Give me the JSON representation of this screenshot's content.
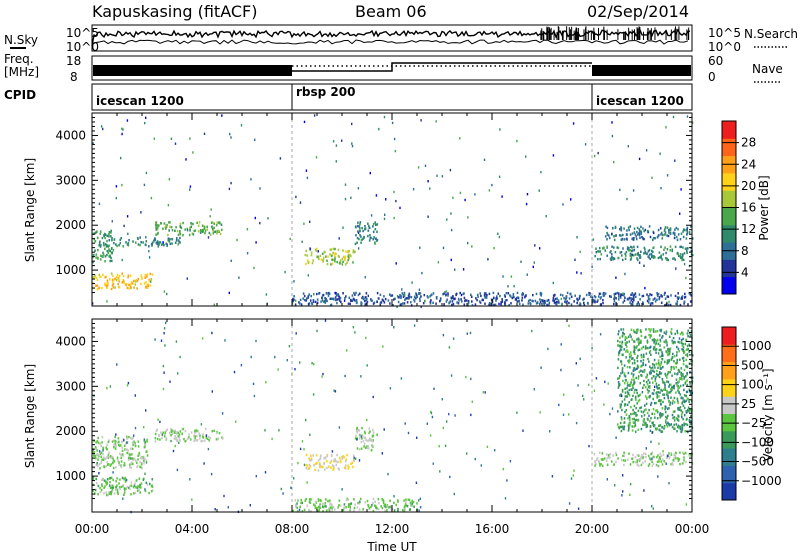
{
  "header": {
    "station": "Kapuskasing (fitACF)",
    "beam": "Beam 06",
    "date": "02/Sep/2014"
  },
  "labels": {
    "nsky": "N.Sky",
    "nsearch": "N.Search",
    "freq_line1": "Freq.",
    "freq_line2": "[MHz]",
    "nave": "Nave",
    "cpid": "CPID"
  },
  "noise_panel": {
    "left_ticks": [
      "10^5",
      "10^0"
    ],
    "right_ticks": [
      "10^5",
      "10^0"
    ]
  },
  "freq_panel": {
    "left_ticks": [
      "18",
      "8"
    ],
    "right_ticks": [
      "60",
      "0"
    ]
  },
  "cpid_segments": [
    {
      "label": "icescan 1200",
      "start_hour": 0,
      "end_hour": 8
    },
    {
      "label": "rbsp 200",
      "start_hour": 8,
      "end_hour": 20
    },
    {
      "label": "icescan 1200",
      "start_hour": 20,
      "end_hour": 24
    }
  ],
  "colorbars": {
    "power": {
      "title": "Power [dB]",
      "ticks": [
        "28",
        "24",
        "20",
        "16",
        "12",
        "8",
        "4"
      ],
      "colors": [
        "#0000ee",
        "#223399",
        "#2e6f98",
        "#2e8a6a",
        "#4aa84a",
        "#a8c83a",
        "#ffd21a",
        "#ffa018",
        "#ff6418",
        "#ee1e1e"
      ]
    },
    "velocity": {
      "title": "Velocity [m s⁻¹]",
      "ticks": [
        "1000",
        "500",
        "100",
        "25",
        "−25",
        "−100",
        "−500",
        "−1000"
      ],
      "colors": [
        "#1a3aa8",
        "#2c62b0",
        "#2e7e8e",
        "#3a9a5a",
        "#5cc640",
        "#c8c8c8",
        "#ffd21a",
        "#ffa018",
        "#ff6e18",
        "#ee1e1e"
      ]
    }
  },
  "chart_data": {
    "type": "heatmap",
    "x_axis": {
      "label": "Time UT",
      "range_hours": [
        0,
        24
      ],
      "ticks": [
        "00:00",
        "04:00",
        "08:00",
        "12:00",
        "16:00",
        "20:00",
        "00:00"
      ]
    },
    "y_axis": {
      "label": "Slant Range [km]",
      "range_km": [
        200,
        4500
      ],
      "ticks": [
        "1000",
        "2000",
        "3000",
        "4000"
      ]
    },
    "panels": [
      {
        "name": "Power",
        "units": "dB",
        "scale": [
          0,
          30
        ],
        "regions": [
          {
            "t0": 0.0,
            "t1": 2.4,
            "r0": 600,
            "r1": 950,
            "value": 20
          },
          {
            "t0": 0.0,
            "t1": 0.8,
            "r0": 1200,
            "r1": 1900,
            "value": 12
          },
          {
            "t0": 0.5,
            "t1": 3.5,
            "r0": 1550,
            "r1": 1750,
            "value": 10
          },
          {
            "t0": 2.5,
            "t1": 5.2,
            "r0": 1800,
            "r1": 2100,
            "value": 14
          },
          {
            "t0": 8.5,
            "t1": 10.5,
            "r0": 1150,
            "r1": 1500,
            "value": 16
          },
          {
            "t0": 10.5,
            "t1": 11.4,
            "r0": 1600,
            "r1": 2100,
            "value": 10
          },
          {
            "t0": 8.0,
            "t1": 24.0,
            "r0": 240,
            "r1": 520,
            "value": 6
          },
          {
            "t0": 20.0,
            "t1": 24.0,
            "r0": 1250,
            "r1": 1550,
            "value": 10
          },
          {
            "t0": 20.5,
            "t1": 24.0,
            "r0": 1700,
            "r1": 2000,
            "value": 8
          }
        ]
      },
      {
        "name": "Velocity",
        "units": "m s-1",
        "scale": [
          -1000,
          1000
        ],
        "regions": [
          {
            "t0": 0.0,
            "t1": 2.4,
            "r0": 600,
            "r1": 1000,
            "value": -100
          },
          {
            "t0": 0.0,
            "t1": 2.2,
            "r0": 1200,
            "r1": 1900,
            "value": -30
          },
          {
            "t0": 2.5,
            "t1": 5.2,
            "r0": 1800,
            "r1": 2100,
            "value": 0
          },
          {
            "t0": 8.5,
            "t1": 10.5,
            "r0": 1150,
            "r1": 1500,
            "value": 200
          },
          {
            "t0": 10.5,
            "t1": 11.4,
            "r0": 1600,
            "r1": 2100,
            "value": 0
          },
          {
            "t0": 8.0,
            "t1": 13.0,
            "r0": 240,
            "r1": 520,
            "value": -50
          },
          {
            "t0": 20.0,
            "t1": 24.0,
            "r0": 1250,
            "r1": 1550,
            "value": 0
          },
          {
            "t0": 21.0,
            "t1": 24.0,
            "r0": 2000,
            "r1": 4300,
            "value": -300
          }
        ]
      }
    ]
  }
}
